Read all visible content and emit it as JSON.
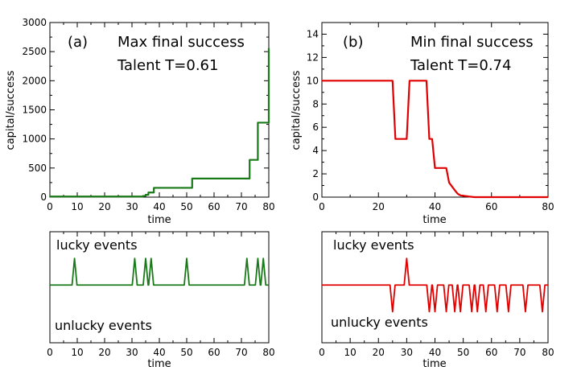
{
  "chart_data": [
    {
      "id": "a-top",
      "type": "line",
      "panel_label": "(a)",
      "annotations": [
        "Max final success",
        "Talent T=0.61"
      ],
      "xlabel": "time",
      "ylabel": "capital/success",
      "xlim": [
        0,
        80
      ],
      "ylim": [
        0,
        3000
      ],
      "xticks": [
        0,
        10,
        20,
        30,
        40,
        50,
        60,
        70,
        80
      ],
      "yticks": [
        0,
        500,
        1000,
        1500,
        2000,
        2500,
        3000
      ],
      "color": "#1a7a1a",
      "series": [
        {
          "step": true,
          "x": [
            0,
            32,
            34,
            35,
            36,
            38,
            52,
            73,
            76,
            77,
            78,
            79,
            80
          ],
          "y": [
            10,
            10,
            20,
            40,
            80,
            160,
            320,
            640,
            1280,
            1280,
            1280,
            1280,
            2560
          ]
        }
      ]
    },
    {
      "id": "b-top",
      "type": "line",
      "panel_label": "(b)",
      "annotations": [
        "Min final success",
        "Talent T=0.74"
      ],
      "xlabel": "time",
      "ylabel": "capital/success",
      "xlim": [
        0,
        80
      ],
      "ylim": [
        0,
        15
      ],
      "xticks": [
        0,
        20,
        40,
        60,
        80
      ],
      "yticks": [
        0,
        2,
        4,
        6,
        8,
        10,
        12,
        14
      ],
      "color": "#e00000",
      "series": [
        {
          "step": false,
          "x": [
            0,
            25,
            26,
            30,
            31,
            35,
            37,
            38,
            39,
            40,
            44,
            45,
            47,
            48,
            49,
            52,
            54,
            80
          ],
          "y": [
            10,
            10,
            5,
            5,
            10,
            10,
            10,
            5,
            5,
            2.5,
            2.5,
            1.25,
            0.6,
            0.3,
            0.15,
            0.05,
            0,
            0
          ]
        }
      ]
    },
    {
      "id": "a-bottom",
      "type": "line",
      "event_labels": [
        "lucky events",
        "unlucky events"
      ],
      "xlabel": "time",
      "xlim": [
        0,
        80
      ],
      "xticks": [
        0,
        10,
        20,
        30,
        40,
        50,
        60,
        70,
        80
      ],
      "color": "#1a7a1a",
      "lucky_times": [
        9,
        31,
        35,
        37,
        50,
        72,
        76,
        78
      ],
      "unlucky_times": []
    },
    {
      "id": "b-bottom",
      "type": "line",
      "event_labels": [
        "lucky events",
        "unlucky events"
      ],
      "xlabel": "time",
      "xlim": [
        0,
        80
      ],
      "xticks": [
        0,
        10,
        20,
        30,
        40,
        50,
        60,
        70,
        80
      ],
      "color": "#e00000",
      "lucky_times": [
        30
      ],
      "unlucky_times": [
        25,
        38,
        40,
        44,
        47,
        49,
        53,
        55,
        58,
        62,
        66,
        72,
        78
      ]
    }
  ]
}
